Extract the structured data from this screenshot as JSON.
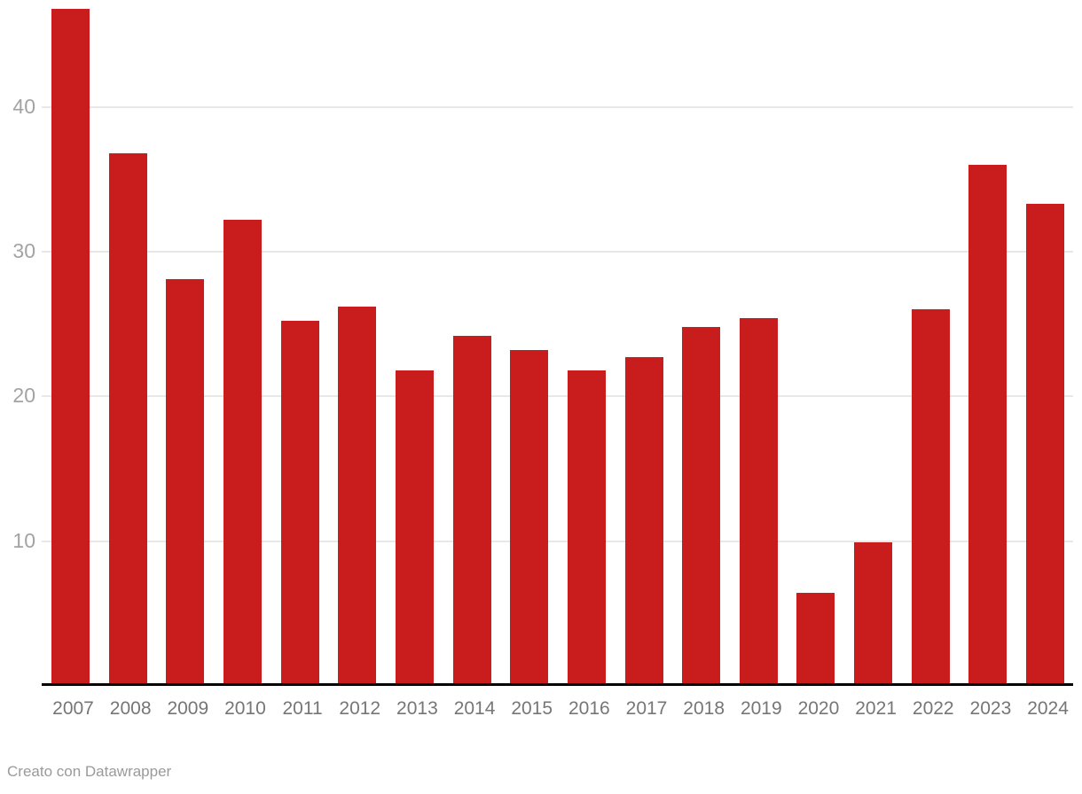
{
  "chart_data": {
    "type": "bar",
    "categories": [
      "2007",
      "2008",
      "2009",
      "2010",
      "2011",
      "2012",
      "2013",
      "2014",
      "2015",
      "2016",
      "2017",
      "2018",
      "2019",
      "2020",
      "2021",
      "2022",
      "2023",
      "2024"
    ],
    "values": [
      46.8,
      36.8,
      28.1,
      32.2,
      25.2,
      26.2,
      21.8,
      24.2,
      23.2,
      21.8,
      22.7,
      24.8,
      25.4,
      6.4,
      9.9,
      26.0,
      36.0,
      33.3
    ],
    "title": "",
    "xlabel": "",
    "ylabel": "",
    "ylim": [
      0,
      47
    ],
    "yticks": [
      10,
      20,
      30,
      40
    ],
    "grid": true,
    "legend": "none",
    "bar_color": "#c91d1d",
    "gridline_color": "#e8e8e8",
    "axis_color": "#000000",
    "y_tick_label_color": "#a3a3a3",
    "x_tick_label_color": "#767676"
  },
  "footer": {
    "credit": "Creato con Datawrapper"
  }
}
